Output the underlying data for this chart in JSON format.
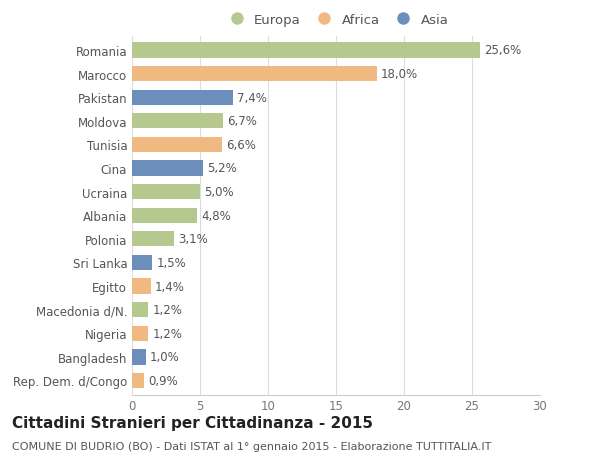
{
  "countries": [
    "Romania",
    "Marocco",
    "Pakistan",
    "Moldova",
    "Tunisia",
    "Cina",
    "Ucraina",
    "Albania",
    "Polonia",
    "Sri Lanka",
    "Egitto",
    "Macedonia d/N.",
    "Nigeria",
    "Bangladesh",
    "Rep. Dem. d/Congo"
  ],
  "values": [
    25.6,
    18.0,
    7.4,
    6.7,
    6.6,
    5.2,
    5.0,
    4.8,
    3.1,
    1.5,
    1.4,
    1.2,
    1.2,
    1.0,
    0.9
  ],
  "labels": [
    "25,6%",
    "18,0%",
    "7,4%",
    "6,7%",
    "6,6%",
    "5,2%",
    "5,0%",
    "4,8%",
    "3,1%",
    "1,5%",
    "1,4%",
    "1,2%",
    "1,2%",
    "1,0%",
    "0,9%"
  ],
  "continents": [
    "Europa",
    "Africa",
    "Asia",
    "Europa",
    "Africa",
    "Asia",
    "Europa",
    "Europa",
    "Europa",
    "Asia",
    "Africa",
    "Europa",
    "Africa",
    "Asia",
    "Africa"
  ],
  "colors": {
    "Europa": "#b5c98e",
    "Africa": "#f0b982",
    "Asia": "#6b8eba"
  },
  "background_color": "#ffffff",
  "title": "Cittadini Stranieri per Cittadinanza - 2015",
  "subtitle": "COMUNE DI BUDRIO (BO) - Dati ISTAT al 1° gennaio 2015 - Elaborazione TUTTITALIA.IT",
  "xlim": [
    0,
    30
  ],
  "xticks": [
    0,
    5,
    10,
    15,
    20,
    25,
    30
  ],
  "bar_height": 0.65,
  "label_fontsize": 8.5,
  "tick_fontsize": 8.5,
  "title_fontsize": 11,
  "subtitle_fontsize": 8.0,
  "legend_fontsize": 9.5
}
